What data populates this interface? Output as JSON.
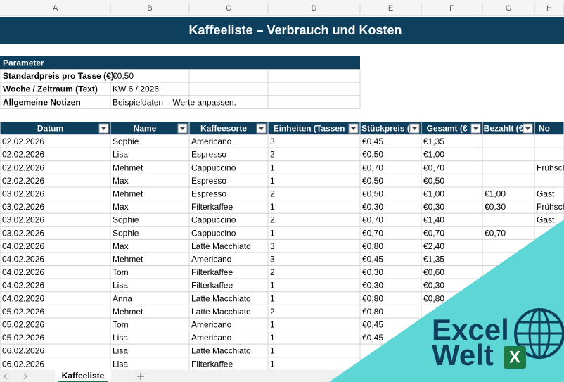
{
  "columns": [
    "A",
    "B",
    "C",
    "D",
    "E",
    "F",
    "G",
    "H"
  ],
  "title": "Kaffeeliste – Verbrauch und Kosten",
  "parameter": {
    "header": "Parameter",
    "rows": [
      [
        "Standardpreis pro Tasse (€)",
        "€0,50"
      ],
      [
        "Woche / Zeitraum (Text)",
        "KW 6 / 2026"
      ],
      [
        "Allgemeine Notizen",
        "Beispieldaten – Werte anpassen."
      ]
    ]
  },
  "table": {
    "headers": [
      "Datum",
      "Name",
      "Kaffeesorte",
      "Einheiten (Tassen",
      "Stückpreis (",
      "Gesamt (€",
      "Bezahlt (€",
      "No"
    ],
    "rows": [
      [
        "02.02.2026",
        "Sophie",
        "Americano",
        3,
        "€0,45",
        "€1,35",
        null,
        null
      ],
      [
        "02.02.2026",
        "Lisa",
        "Espresso",
        2,
        "€0,50",
        "€1,00",
        null,
        null
      ],
      [
        "02.02.2026",
        "Mehmet",
        "Cappuccino",
        1,
        "€0,70",
        "€0,70",
        null,
        "Frühsch"
      ],
      [
        "02.02.2026",
        "Max",
        "Espresso",
        1,
        "€0,50",
        "€0,50",
        null,
        null
      ],
      [
        "03.02.2026",
        "Mehmet",
        "Espresso",
        2,
        "€0,50",
        "€1,00",
        "€1,00",
        "Gast"
      ],
      [
        "03.02.2026",
        "Max",
        "Filterkaffee",
        1,
        "€0,30",
        "€0,30",
        "€0,30",
        "Frühsch"
      ],
      [
        "03.02.2026",
        "Sophie",
        "Cappuccino",
        2,
        "€0,70",
        "€1,40",
        null,
        "Gast"
      ],
      [
        "03.02.2026",
        "Sophie",
        "Cappuccino",
        1,
        "€0,70",
        "€0,70",
        "€0,70",
        null
      ],
      [
        "04.02.2026",
        "Max",
        "Latte Macchiato",
        3,
        "€0,80",
        "€2,40",
        null,
        null
      ],
      [
        "04.02.2026",
        "Mehmet",
        "Americano",
        3,
        "€0,45",
        "€1,35",
        null,
        null
      ],
      [
        "04.02.2026",
        "Tom",
        "Filterkaffee",
        2,
        "€0,30",
        "€0,60",
        null,
        null
      ],
      [
        "04.02.2026",
        "Lisa",
        "Filterkaffee",
        1,
        "€0,30",
        "€0,30",
        null,
        null
      ],
      [
        "04.02.2026",
        "Anna",
        "Latte Macchiato",
        1,
        "€0,80",
        "€0,80",
        null,
        null
      ],
      [
        "05.02.2026",
        "Mehmet",
        "Latte Macchiato",
        2,
        "€0,80",
        null,
        null,
        null
      ],
      [
        "05.02.2026",
        "Tom",
        "Americano",
        1,
        "€0,45",
        null,
        null,
        null
      ],
      [
        "05.02.2026",
        "Lisa",
        "Americano",
        1,
        "€0,45",
        null,
        null,
        null
      ],
      [
        "06.02.2026",
        "Lisa",
        "Latte Macchiato",
        1,
        null,
        null,
        null,
        null
      ],
      [
        "06.02.2026",
        "Lisa",
        "Filterkaffee",
        1,
        null,
        null,
        null,
        null
      ]
    ]
  },
  "sheet_tab": "Kaffeeliste",
  "logo": {
    "line1": "Excel",
    "line2": "Welt",
    "badge": "X"
  }
}
